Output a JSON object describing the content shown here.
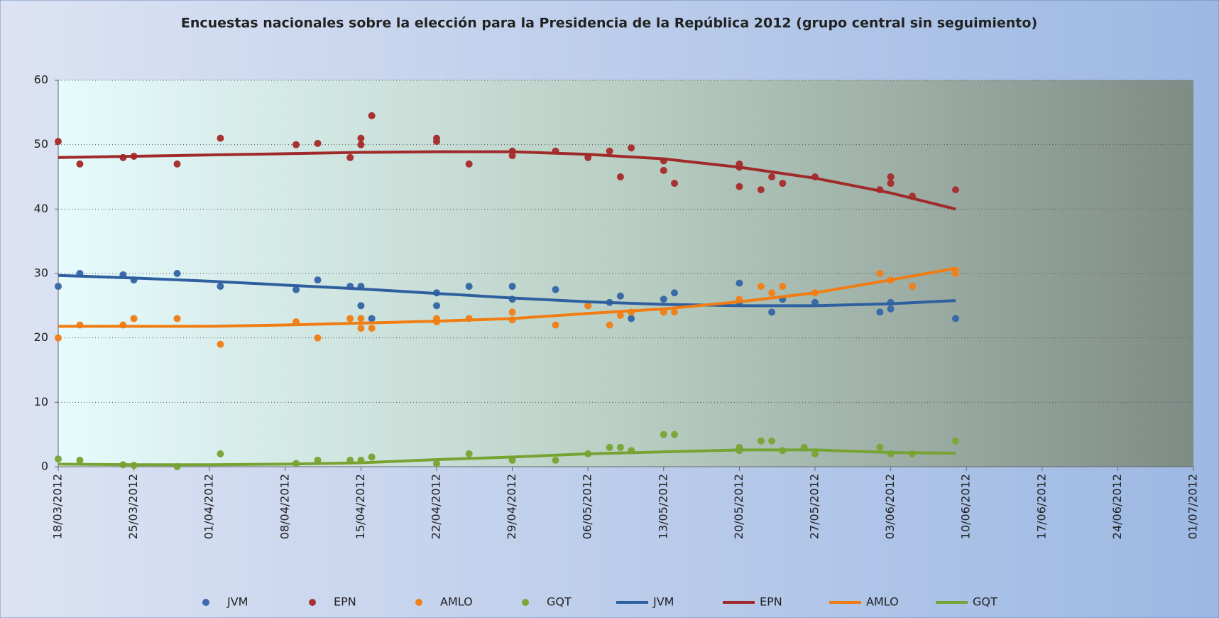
{
  "chart_data": {
    "type": "scatter-trend",
    "title": "Encuestas nacionales sobre la elección para la Presidencia de la República 2012 (grupo central sin seguimiento)",
    "xlim": [
      "18/03/2012",
      "01/07/2012"
    ],
    "xticks": [
      "18/03/2012",
      "25/03/2012",
      "01/04/2012",
      "08/04/2012",
      "15/04/2012",
      "22/04/2012",
      "29/04/2012",
      "06/05/2012",
      "13/05/2012",
      "20/05/2012",
      "27/05/2012",
      "03/06/2012",
      "10/06/2012",
      "17/06/2012",
      "24/06/2012",
      "01/07/2012"
    ],
    "ylim": [
      0,
      60
    ],
    "yticks": [
      0,
      10,
      20,
      30,
      40,
      50,
      60
    ],
    "grid": true,
    "legend": "bottom",
    "series": [
      {
        "name": "JVM",
        "mode": "markers",
        "color": "#3a6aa8",
        "x": [
          "18/03/2012",
          "20/03/2012",
          "24/03/2012",
          "25/03/2012",
          "29/03/2012",
          "02/04/2012",
          "09/04/2012",
          "11/04/2012",
          "14/04/2012",
          "15/04/2012",
          "15/04/2012",
          "16/04/2012",
          "22/04/2012",
          "22/04/2012",
          "25/04/2012",
          "29/04/2012",
          "29/04/2012",
          "03/05/2012",
          "06/05/2012",
          "08/05/2012",
          "09/05/2012",
          "10/05/2012",
          "13/05/2012",
          "14/05/2012",
          "20/05/2012",
          "20/05/2012",
          "23/05/2012",
          "24/05/2012",
          "27/05/2012",
          "02/06/2012",
          "03/06/2012",
          "03/06/2012",
          "05/06/2012",
          "09/06/2012"
        ],
        "values": [
          28,
          30,
          29.8,
          29,
          30,
          28,
          27.5,
          29,
          28,
          25,
          28,
          23,
          25,
          27,
          28,
          28,
          26,
          27.5,
          25,
          25.5,
          26.5,
          23,
          26,
          27,
          28.5,
          25.5,
          24,
          26,
          25.5,
          24,
          25.5,
          24.5,
          28,
          23
        ]
      },
      {
        "name": "EPN",
        "mode": "markers",
        "color": "#a83232",
        "x": [
          "18/03/2012",
          "20/03/2012",
          "24/03/2012",
          "25/03/2012",
          "29/03/2012",
          "02/04/2012",
          "09/04/2012",
          "11/04/2012",
          "14/04/2012",
          "15/04/2012",
          "15/04/2012",
          "16/04/2012",
          "22/04/2012",
          "22/04/2012",
          "25/04/2012",
          "29/04/2012",
          "29/04/2012",
          "03/05/2012",
          "06/05/2012",
          "08/05/2012",
          "09/05/2012",
          "10/05/2012",
          "13/05/2012",
          "13/05/2012",
          "14/05/2012",
          "20/05/2012",
          "20/05/2012",
          "20/05/2012",
          "22/05/2012",
          "23/05/2012",
          "24/05/2012",
          "27/05/2012",
          "02/06/2012",
          "03/06/2012",
          "03/06/2012",
          "05/06/2012",
          "09/06/2012"
        ],
        "values": [
          50.5,
          47,
          48,
          48.2,
          47,
          51,
          50,
          50.2,
          48,
          51,
          50,
          54.5,
          51,
          50.5,
          47,
          49,
          48.3,
          49,
          48,
          49,
          45,
          49.5,
          46,
          47.5,
          44,
          47,
          46.5,
          43.5,
          43,
          45,
          44,
          45,
          43,
          45,
          44,
          42,
          43
        ]
      },
      {
        "name": "AMLO",
        "mode": "markers",
        "color": "#f0821e",
        "x": [
          "18/03/2012",
          "20/03/2012",
          "24/03/2012",
          "25/03/2012",
          "29/03/2012",
          "02/04/2012",
          "09/04/2012",
          "11/04/2012",
          "14/04/2012",
          "15/04/2012",
          "15/04/2012",
          "16/04/2012",
          "22/04/2012",
          "22/04/2012",
          "25/04/2012",
          "29/04/2012",
          "29/04/2012",
          "03/05/2012",
          "06/05/2012",
          "08/05/2012",
          "09/05/2012",
          "10/05/2012",
          "13/05/2012",
          "14/05/2012",
          "20/05/2012",
          "22/05/2012",
          "23/05/2012",
          "24/05/2012",
          "27/05/2012",
          "02/06/2012",
          "03/06/2012",
          "05/06/2012",
          "09/06/2012",
          "09/06/2012"
        ],
        "values": [
          20,
          22,
          22,
          23,
          23,
          19,
          22.5,
          20,
          23,
          21.5,
          23,
          21.5,
          22.5,
          23,
          23,
          24,
          22.8,
          22,
          25,
          22,
          23.5,
          24,
          24,
          24,
          26,
          28,
          27,
          28,
          27,
          30,
          29,
          28,
          30.5,
          30
        ]
      },
      {
        "name": "GQT",
        "mode": "markers",
        "color": "#7ba73a",
        "x": [
          "18/03/2012",
          "20/03/2012",
          "24/03/2012",
          "25/03/2012",
          "29/03/2012",
          "02/04/2012",
          "09/04/2012",
          "11/04/2012",
          "14/04/2012",
          "15/04/2012",
          "16/04/2012",
          "22/04/2012",
          "25/04/2012",
          "29/04/2012",
          "03/05/2012",
          "06/05/2012",
          "08/05/2012",
          "09/05/2012",
          "10/05/2012",
          "13/05/2012",
          "14/05/2012",
          "20/05/2012",
          "20/05/2012",
          "22/05/2012",
          "23/05/2012",
          "24/05/2012",
          "26/05/2012",
          "27/05/2012",
          "02/06/2012",
          "03/06/2012",
          "05/06/2012",
          "09/06/2012"
        ],
        "values": [
          1.2,
          1,
          0.3,
          0.2,
          0,
          2,
          0.5,
          1,
          1,
          1,
          1.5,
          0.5,
          2,
          1,
          1,
          2,
          3,
          3,
          2.5,
          5,
          5,
          2.5,
          3,
          4,
          4,
          2.5,
          3,
          2,
          3,
          2,
          2,
          4
        ]
      },
      {
        "name": "JVM",
        "mode": "line",
        "color": "#2e5f9e",
        "x": [
          "18/03/2012",
          "25/03/2012",
          "01/04/2012",
          "08/04/2012",
          "15/04/2012",
          "22/04/2012",
          "29/04/2012",
          "06/05/2012",
          "13/05/2012",
          "20/05/2012",
          "27/05/2012",
          "03/06/2012",
          "09/06/2012"
        ],
        "values": [
          29.7,
          29.3,
          28.8,
          28.2,
          27.6,
          26.9,
          26.2,
          25.6,
          25.2,
          25,
          25,
          25.3,
          25.8
        ]
      },
      {
        "name": "EPN",
        "mode": "line",
        "color": "#a02a2a",
        "x": [
          "18/03/2012",
          "25/03/2012",
          "01/04/2012",
          "08/04/2012",
          "15/04/2012",
          "22/04/2012",
          "29/04/2012",
          "06/05/2012",
          "13/05/2012",
          "20/05/2012",
          "27/05/2012",
          "03/06/2012",
          "09/06/2012"
        ],
        "values": [
          48,
          48.2,
          48.4,
          48.6,
          48.8,
          48.9,
          48.9,
          48.5,
          47.8,
          46.5,
          44.8,
          42.5,
          40
        ]
      },
      {
        "name": "AMLO",
        "mode": "line",
        "color": "#f07c12",
        "x": [
          "18/03/2012",
          "25/03/2012",
          "01/04/2012",
          "08/04/2012",
          "15/04/2012",
          "22/04/2012",
          "29/04/2012",
          "06/05/2012",
          "13/05/2012",
          "20/05/2012",
          "27/05/2012",
          "03/06/2012",
          "09/06/2012"
        ],
        "values": [
          21.8,
          21.8,
          21.8,
          22,
          22.3,
          22.6,
          23,
          23.8,
          24.5,
          25.6,
          27,
          29,
          30.8
        ]
      },
      {
        "name": "GQT",
        "mode": "line",
        "color": "#76a332",
        "x": [
          "18/03/2012",
          "25/03/2012",
          "01/04/2012",
          "08/04/2012",
          "15/04/2012",
          "22/04/2012",
          "29/04/2012",
          "06/05/2012",
          "13/05/2012",
          "20/05/2012",
          "27/05/2012",
          "03/06/2012",
          "09/06/2012"
        ],
        "values": [
          0.4,
          0.3,
          0.3,
          0.4,
          0.6,
          1.1,
          1.5,
          2,
          2.3,
          2.6,
          2.6,
          2.2,
          2.1
        ]
      }
    ]
  }
}
